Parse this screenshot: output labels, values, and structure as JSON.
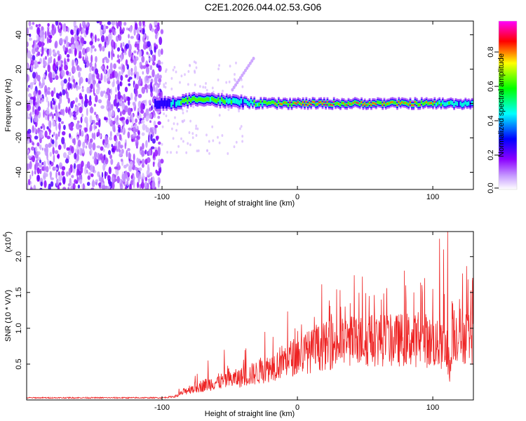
{
  "page": {
    "title": "C2E1.2026.044.02.53.G06"
  },
  "chart_data": [
    {
      "type": "heatmap",
      "title": "C2E1.2026.044.02.53.G06",
      "xlabel": "Height of straight line (km)",
      "ylabel": "Frequency (Hz)",
      "xlim": [
        -200,
        130
      ],
      "ylim": [
        -50,
        48
      ],
      "xticks": [
        -100,
        0,
        100
      ],
      "yticks": [
        -40,
        -20,
        0,
        20,
        40
      ],
      "colorbar": {
        "label": "Normalized spectral amplitude",
        "range": [
          0.0,
          0.98
        ],
        "ticks": [
          "0.0",
          "0.2",
          "0.4",
          "0.6",
          "0.8"
        ],
        "colormap": [
          "#ffffff",
          "#8b00ff",
          "#0000ff",
          "#00ffff",
          "#00ff00",
          "#ffff00",
          "#ff0000",
          "#ff00ff"
        ]
      },
      "ridge": {
        "description_points_x": [
          -200,
          -100,
          -90,
          -80,
          -70,
          -60,
          -50,
          -40,
          -30,
          -20,
          -10,
          0,
          20,
          40,
          60,
          80,
          100,
          110,
          130
        ],
        "frequency": [
          0,
          0,
          0,
          2,
          3,
          2,
          1,
          1,
          0,
          0,
          0,
          0,
          0,
          0,
          0,
          0,
          0,
          0,
          0
        ],
        "peak_amplitude": [
          0.2,
          0.3,
          0.5,
          0.75,
          0.7,
          0.65,
          0.6,
          0.55,
          0.6,
          0.85,
          0.85,
          0.9,
          0.9,
          0.85,
          0.8,
          0.85,
          0.8,
          0.6,
          0.45
        ]
      }
    },
    {
      "type": "line",
      "xlabel": "Height of straight line (km)",
      "ylabel": "SNR (10 * V/V)",
      "yscale_label": "(x10",
      "yscale_exp": "4",
      "xlim": [
        -200,
        130
      ],
      "ylim": [
        0,
        2.35
      ],
      "xticks": [
        -100,
        0,
        100
      ],
      "yticks": [
        0.5,
        1.0,
        1.5,
        2.0
      ],
      "ytick_labels": [
        "0.5",
        "1.0",
        "1.5",
        "2.0"
      ],
      "color": "#ee2222",
      "x": [
        -200,
        -150,
        -100,
        -90,
        -85,
        -80,
        -70,
        -60,
        -50,
        -40,
        -30,
        -20,
        -10,
        0,
        10,
        20,
        30,
        40,
        50,
        60,
        70,
        80,
        90,
        100,
        105,
        110,
        113,
        115,
        120,
        130
      ],
      "baseline": [
        0.03,
        0.03,
        0.03,
        0.05,
        0.1,
        0.15,
        0.2,
        0.25,
        0.28,
        0.32,
        0.38,
        0.45,
        0.55,
        0.62,
        0.68,
        0.75,
        0.78,
        0.82,
        0.82,
        0.85,
        0.82,
        0.85,
        0.82,
        0.8,
        0.75,
        0.7,
        0.4,
        0.95,
        0.9,
        0.88
      ],
      "spikes": [
        {
          "x": -66,
          "y": 0.55
        },
        {
          "x": -54,
          "y": 0.7
        },
        {
          "x": -38,
          "y": 0.72
        },
        {
          "x": -24,
          "y": 0.95
        },
        {
          "x": -18,
          "y": 0.88
        },
        {
          "x": 14,
          "y": 1.05
        },
        {
          "x": 25,
          "y": 1.2
        },
        {
          "x": 32,
          "y": 1.3
        },
        {
          "x": 39,
          "y": 1.35
        },
        {
          "x": 48,
          "y": 1.72
        },
        {
          "x": 53,
          "y": 1.45
        },
        {
          "x": 62,
          "y": 1.4
        },
        {
          "x": 72,
          "y": 1.1
        },
        {
          "x": 80,
          "y": 1.6
        },
        {
          "x": 86,
          "y": 1.5
        },
        {
          "x": 94,
          "y": 1.7
        },
        {
          "x": 100,
          "y": 1.55
        },
        {
          "x": 105,
          "y": 2.25
        },
        {
          "x": 108,
          "y": 2.1
        },
        {
          "x": 111,
          "y": 2.35
        }
      ]
    }
  ]
}
